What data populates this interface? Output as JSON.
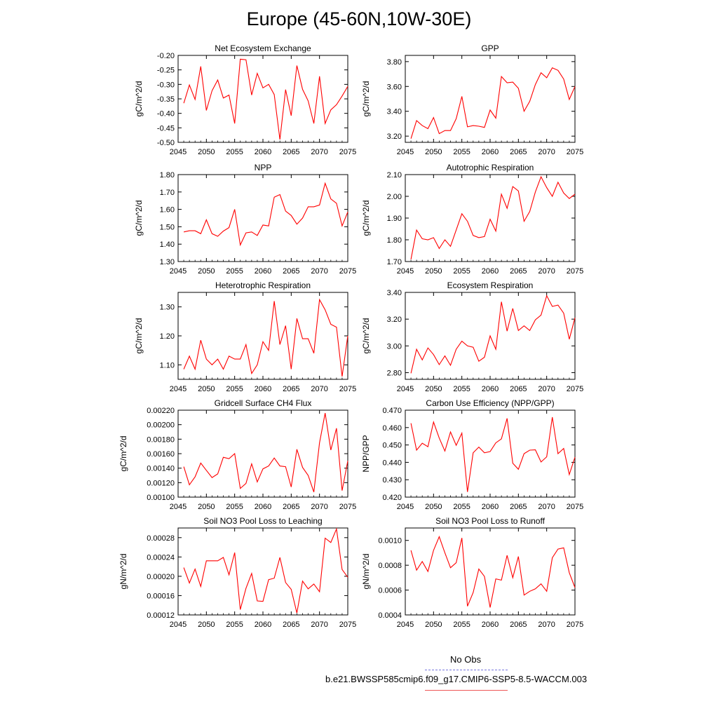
{
  "figure": {
    "title": "Europe (45-60N,10W-30E)",
    "line_color": "#ff0000",
    "obs_color": "#7777dd"
  },
  "legend": {
    "obs_label": "No Obs",
    "case_label": "b.e21.BWSSP585cmip6.f09_g17.CMIP6-SSP5-8.5-WACCM.003"
  },
  "chart_data": [
    {
      "type": "line",
      "title": "Net Ecosystem Exchange",
      "xlabel": "",
      "ylabel": "gC/m^2/d",
      "xlim": [
        2045,
        2075
      ],
      "ylim": [
        -0.5,
        -0.2
      ],
      "xticks": [
        2045,
        2050,
        2055,
        2060,
        2065,
        2070,
        2075
      ],
      "yticks": [
        -0.5,
        -0.45,
        -0.4,
        -0.35,
        -0.3,
        -0.25,
        -0.2
      ],
      "ytick_labels": [
        "-0.50",
        "-0.45",
        "-0.40",
        "-0.35",
        "-0.30",
        "-0.25",
        "-0.20"
      ],
      "grid": false,
      "series": [
        {
          "x": [
            2046,
            2047,
            2048,
            2049,
            2050,
            2051,
            2052,
            2053,
            2054,
            2055,
            2056,
            2057,
            2058,
            2059,
            2060,
            2061,
            2062,
            2063,
            2064,
            2065,
            2066,
            2067,
            2068,
            2069,
            2070,
            2071,
            2072,
            2073,
            2074,
            2075
          ],
          "values": [
            -0.365,
            -0.302,
            -0.352,
            -0.238,
            -0.39,
            -0.322,
            -0.285,
            -0.347,
            -0.337,
            -0.435,
            -0.213,
            -0.215,
            -0.337,
            -0.262,
            -0.312,
            -0.3,
            -0.335,
            -0.49,
            -0.318,
            -0.408,
            -0.235,
            -0.317,
            -0.357,
            -0.435,
            -0.272,
            -0.435,
            -0.388,
            -0.37,
            -0.34,
            -0.307
          ]
        }
      ]
    },
    {
      "type": "line",
      "title": "GPP",
      "xlabel": "",
      "ylabel": "gC/m^2/d",
      "xlim": [
        2045,
        2075
      ],
      "ylim": [
        3.15,
        3.85
      ],
      "xticks": [
        2045,
        2050,
        2055,
        2060,
        2065,
        2070,
        2075
      ],
      "yticks": [
        3.2,
        3.4,
        3.6,
        3.8
      ],
      "ytick_labels": [
        "3.20",
        "3.40",
        "3.60",
        "3.80"
      ],
      "grid": false,
      "series": [
        {
          "x": [
            2046,
            2047,
            2048,
            2049,
            2050,
            2051,
            2052,
            2053,
            2054,
            2055,
            2056,
            2057,
            2058,
            2059,
            2060,
            2061,
            2062,
            2063,
            2064,
            2065,
            2066,
            2067,
            2068,
            2069,
            2070,
            2071,
            2072,
            2073,
            2074,
            2075
          ],
          "values": [
            3.18,
            3.325,
            3.285,
            3.26,
            3.35,
            3.22,
            3.245,
            3.245,
            3.34,
            3.52,
            3.275,
            3.285,
            3.28,
            3.27,
            3.41,
            3.345,
            3.68,
            3.63,
            3.635,
            3.585,
            3.4,
            3.48,
            3.615,
            3.71,
            3.67,
            3.75,
            3.73,
            3.66,
            3.495,
            3.6
          ]
        }
      ]
    },
    {
      "type": "line",
      "title": "NPP",
      "xlabel": "",
      "ylabel": "gC/m^2/d",
      "xlim": [
        2045,
        2075
      ],
      "ylim": [
        1.3,
        1.8
      ],
      "xticks": [
        2045,
        2050,
        2055,
        2060,
        2065,
        2070,
        2075
      ],
      "yticks": [
        1.3,
        1.4,
        1.5,
        1.6,
        1.7,
        1.8
      ],
      "ytick_labels": [
        "1.30",
        "1.40",
        "1.50",
        "1.60",
        "1.70",
        "1.80"
      ],
      "grid": false,
      "series": [
        {
          "x": [
            2046,
            2047,
            2048,
            2049,
            2050,
            2051,
            2052,
            2053,
            2054,
            2055,
            2056,
            2057,
            2058,
            2059,
            2060,
            2061,
            2062,
            2063,
            2064,
            2065,
            2066,
            2067,
            2068,
            2069,
            2070,
            2071,
            2072,
            2073,
            2074,
            2075
          ],
          "values": [
            1.47,
            1.477,
            1.477,
            1.46,
            1.54,
            1.46,
            1.445,
            1.475,
            1.495,
            1.6,
            1.395,
            1.465,
            1.47,
            1.45,
            1.51,
            1.505,
            1.67,
            1.685,
            1.59,
            1.565,
            1.515,
            1.55,
            1.615,
            1.615,
            1.625,
            1.75,
            1.66,
            1.635,
            1.505,
            1.585
          ]
        }
      ]
    },
    {
      "type": "line",
      "title": "Autotrophic Respiration",
      "xlabel": "",
      "ylabel": "gC/m^2/d",
      "xlim": [
        2045,
        2075
      ],
      "ylim": [
        1.7,
        2.1
      ],
      "xticks": [
        2045,
        2050,
        2055,
        2060,
        2065,
        2070,
        2075
      ],
      "yticks": [
        1.7,
        1.8,
        1.9,
        2.0,
        2.1
      ],
      "ytick_labels": [
        "1.70",
        "1.80",
        "1.90",
        "2.00",
        "2.10"
      ],
      "grid": false,
      "series": [
        {
          "x": [
            2046,
            2047,
            2048,
            2049,
            2050,
            2051,
            2052,
            2053,
            2054,
            2055,
            2056,
            2057,
            2058,
            2059,
            2060,
            2061,
            2062,
            2063,
            2064,
            2065,
            2066,
            2067,
            2068,
            2069,
            2070,
            2071,
            2072,
            2073,
            2074,
            2075
          ],
          "values": [
            1.71,
            1.845,
            1.805,
            1.8,
            1.81,
            1.76,
            1.8,
            1.77,
            1.845,
            1.92,
            1.885,
            1.82,
            1.81,
            1.815,
            1.895,
            1.84,
            2.01,
            1.945,
            2.045,
            2.025,
            1.885,
            1.93,
            2.02,
            2.09,
            2.04,
            2.0,
            2.065,
            2.015,
            1.99,
            2.01
          ]
        }
      ]
    },
    {
      "type": "line",
      "title": "Heterotrophic Respiration",
      "xlabel": "",
      "ylabel": "gC/m^2/d",
      "xlim": [
        2045,
        2075
      ],
      "ylim": [
        1.05,
        1.35
      ],
      "xticks": [
        2045,
        2050,
        2055,
        2060,
        2065,
        2070,
        2075
      ],
      "yticks": [
        1.1,
        1.2,
        1.3
      ],
      "ytick_labels": [
        "1.10",
        "1.20",
        "1.30"
      ],
      "grid": false,
      "series": [
        {
          "x": [
            2046,
            2047,
            2048,
            2049,
            2050,
            2051,
            2052,
            2053,
            2054,
            2055,
            2056,
            2057,
            2058,
            2059,
            2060,
            2061,
            2062,
            2063,
            2064,
            2065,
            2066,
            2067,
            2068,
            2069,
            2070,
            2071,
            2072,
            2073,
            2074,
            2075
          ],
          "values": [
            1.085,
            1.13,
            1.085,
            1.185,
            1.12,
            1.1,
            1.12,
            1.085,
            1.13,
            1.12,
            1.12,
            1.17,
            1.07,
            1.1,
            1.18,
            1.15,
            1.32,
            1.17,
            1.235,
            1.085,
            1.26,
            1.19,
            1.19,
            1.14,
            1.325,
            1.29,
            1.24,
            1.23,
            1.06,
            1.2
          ]
        }
      ]
    },
    {
      "type": "line",
      "title": "Ecosystem Respiration",
      "xlabel": "",
      "ylabel": "gC/m^2/d",
      "xlim": [
        2045,
        2075
      ],
      "ylim": [
        2.75,
        3.4
      ],
      "xticks": [
        2045,
        2050,
        2055,
        2060,
        2065,
        2070,
        2075
      ],
      "yticks": [
        2.8,
        3.0,
        3.2,
        3.4
      ],
      "ytick_labels": [
        "2.80",
        "3.00",
        "3.20",
        "3.40"
      ],
      "grid": false,
      "series": [
        {
          "x": [
            2046,
            2047,
            2048,
            2049,
            2050,
            2051,
            2052,
            2053,
            2054,
            2055,
            2056,
            2057,
            2058,
            2059,
            2060,
            2061,
            2062,
            2063,
            2064,
            2065,
            2066,
            2067,
            2068,
            2069,
            2070,
            2071,
            2072,
            2073,
            2074,
            2075
          ],
          "values": [
            2.795,
            2.975,
            2.895,
            2.985,
            2.935,
            2.86,
            2.925,
            2.855,
            2.975,
            3.035,
            3.0,
            2.99,
            2.885,
            2.915,
            3.075,
            2.975,
            3.33,
            3.11,
            3.28,
            3.115,
            3.15,
            3.115,
            3.195,
            3.23,
            3.375,
            3.295,
            3.305,
            3.245,
            3.05,
            3.21
          ]
        }
      ]
    },
    {
      "type": "line",
      "title": "Gridcell Surface CH4 Flux",
      "xlabel": "",
      "ylabel": "gC/m^2/d",
      "xlim": [
        2045,
        2075
      ],
      "ylim": [
        0.001,
        0.0022
      ],
      "xticks": [
        2045,
        2050,
        2055,
        2060,
        2065,
        2070,
        2075
      ],
      "yticks": [
        0.001,
        0.0012,
        0.0014,
        0.0016,
        0.0018,
        0.002,
        0.0022
      ],
      "ytick_labels": [
        "0.00100",
        "0.00120",
        "0.00140",
        "0.00160",
        "0.00180",
        "0.00200",
        "0.00220"
      ],
      "grid": false,
      "series": [
        {
          "x": [
            2046,
            2047,
            2048,
            2049,
            2050,
            2051,
            2052,
            2053,
            2054,
            2055,
            2056,
            2057,
            2058,
            2059,
            2060,
            2061,
            2062,
            2063,
            2064,
            2065,
            2066,
            2067,
            2068,
            2069,
            2070,
            2071,
            2072,
            2073,
            2074,
            2075
          ],
          "values": [
            0.00142,
            0.00117,
            0.00128,
            0.00147,
            0.00137,
            0.00127,
            0.00132,
            0.00155,
            0.00153,
            0.0016,
            0.00112,
            0.00119,
            0.00146,
            0.00121,
            0.00139,
            0.00143,
            0.00154,
            0.00143,
            0.00142,
            0.00114,
            0.00166,
            0.00141,
            0.0013,
            0.00107,
            0.00175,
            0.00216,
            0.00165,
            0.00195,
            0.00109,
            0.0015
          ]
        }
      ]
    },
    {
      "type": "line",
      "title": "Carbon Use Efficiency (NPP/GPP)",
      "xlabel": "",
      "ylabel": "NPP/GPP",
      "xlim": [
        2045,
        2075
      ],
      "ylim": [
        0.42,
        0.47
      ],
      "xticks": [
        2045,
        2050,
        2055,
        2060,
        2065,
        2070,
        2075
      ],
      "yticks": [
        0.42,
        0.43,
        0.44,
        0.45,
        0.46,
        0.47
      ],
      "ytick_labels": [
        "0.420",
        "0.430",
        "0.440",
        "0.450",
        "0.460",
        "0.470"
      ],
      "grid": false,
      "series": [
        {
          "x": [
            2046,
            2047,
            2048,
            2049,
            2050,
            2051,
            2052,
            2053,
            2054,
            2055,
            2056,
            2057,
            2058,
            2059,
            2060,
            2061,
            2062,
            2063,
            2064,
            2065,
            2066,
            2067,
            2068,
            2069,
            2070,
            2071,
            2072,
            2073,
            2074,
            2075
          ],
          "values": [
            0.4625,
            0.447,
            0.451,
            0.449,
            0.4632,
            0.454,
            0.4465,
            0.4575,
            0.4498,
            0.4568,
            0.423,
            0.4455,
            0.4488,
            0.4455,
            0.4462,
            0.4512,
            0.4535,
            0.4653,
            0.4395,
            0.436,
            0.445,
            0.447,
            0.4472,
            0.4402,
            0.4432,
            0.466,
            0.445,
            0.448,
            0.433,
            0.443
          ]
        }
      ]
    },
    {
      "type": "line",
      "title": "Soil NO3 Pool Loss to Leaching",
      "xlabel": "",
      "ylabel": "gN/m^2/d",
      "xlim": [
        2045,
        2075
      ],
      "ylim": [
        0.00012,
        0.0003
      ],
      "xticks": [
        2045,
        2050,
        2055,
        2060,
        2065,
        2070,
        2075
      ],
      "yticks": [
        0.00012,
        0.00016,
        0.0002,
        0.00024,
        0.00028
      ],
      "ytick_labels": [
        "0.00012",
        "0.00016",
        "0.00020",
        "0.00024",
        "0.00028"
      ],
      "grid": false,
      "series": [
        {
          "x": [
            2046,
            2047,
            2048,
            2049,
            2050,
            2051,
            2052,
            2053,
            2054,
            2055,
            2056,
            2057,
            2058,
            2059,
            2060,
            2061,
            2062,
            2063,
            2064,
            2065,
            2066,
            2067,
            2068,
            2069,
            2070,
            2071,
            2072,
            2073,
            2074,
            2075
          ],
          "values": [
            0.000218,
            0.000186,
            0.000215,
            0.000179,
            0.000232,
            0.000232,
            0.000232,
            0.000239,
            0.000203,
            0.000249,
            0.000131,
            0.000175,
            0.000206,
            0.000149,
            0.000148,
            0.000193,
            0.000196,
            0.000239,
            0.000187,
            0.000173,
            0.000124,
            0.00019,
            0.000174,
            0.000184,
            0.000168,
            0.000279,
            0.00027,
            0.000298,
            0.000214,
            0.000198
          ]
        }
      ]
    },
    {
      "type": "line",
      "title": "Soil NO3 Pool Loss to Runoff",
      "xlabel": "",
      "ylabel": "gN/m^2/d",
      "xlim": [
        2045,
        2075
      ],
      "ylim": [
        0.0004,
        0.0011
      ],
      "xticks": [
        2045,
        2050,
        2055,
        2060,
        2065,
        2070,
        2075
      ],
      "yticks": [
        0.0004,
        0.0006,
        0.0008,
        0.001
      ],
      "ytick_labels": [
        "0.0004",
        "0.0006",
        "0.0008",
        "0.0010"
      ],
      "grid": false,
      "series": [
        {
          "x": [
            2046,
            2047,
            2048,
            2049,
            2050,
            2051,
            2052,
            2053,
            2054,
            2055,
            2056,
            2057,
            2058,
            2059,
            2060,
            2061,
            2062,
            2063,
            2064,
            2065,
            2066,
            2067,
            2068,
            2069,
            2070,
            2071,
            2072,
            2073,
            2074,
            2075
          ],
          "values": [
            0.00092,
            0.00076,
            0.00083,
            0.00075,
            0.00092,
            0.00103,
            0.0009,
            0.00078,
            0.00082,
            0.00102,
            0.00047,
            0.00058,
            0.00077,
            0.00071,
            0.00046,
            0.00069,
            0.00068,
            0.00088,
            0.0007,
            0.00087,
            0.00056,
            0.00059,
            0.00061,
            0.00065,
            0.00059,
            0.00086,
            0.00093,
            0.00094,
            0.00074,
            0.00062
          ]
        }
      ]
    }
  ]
}
